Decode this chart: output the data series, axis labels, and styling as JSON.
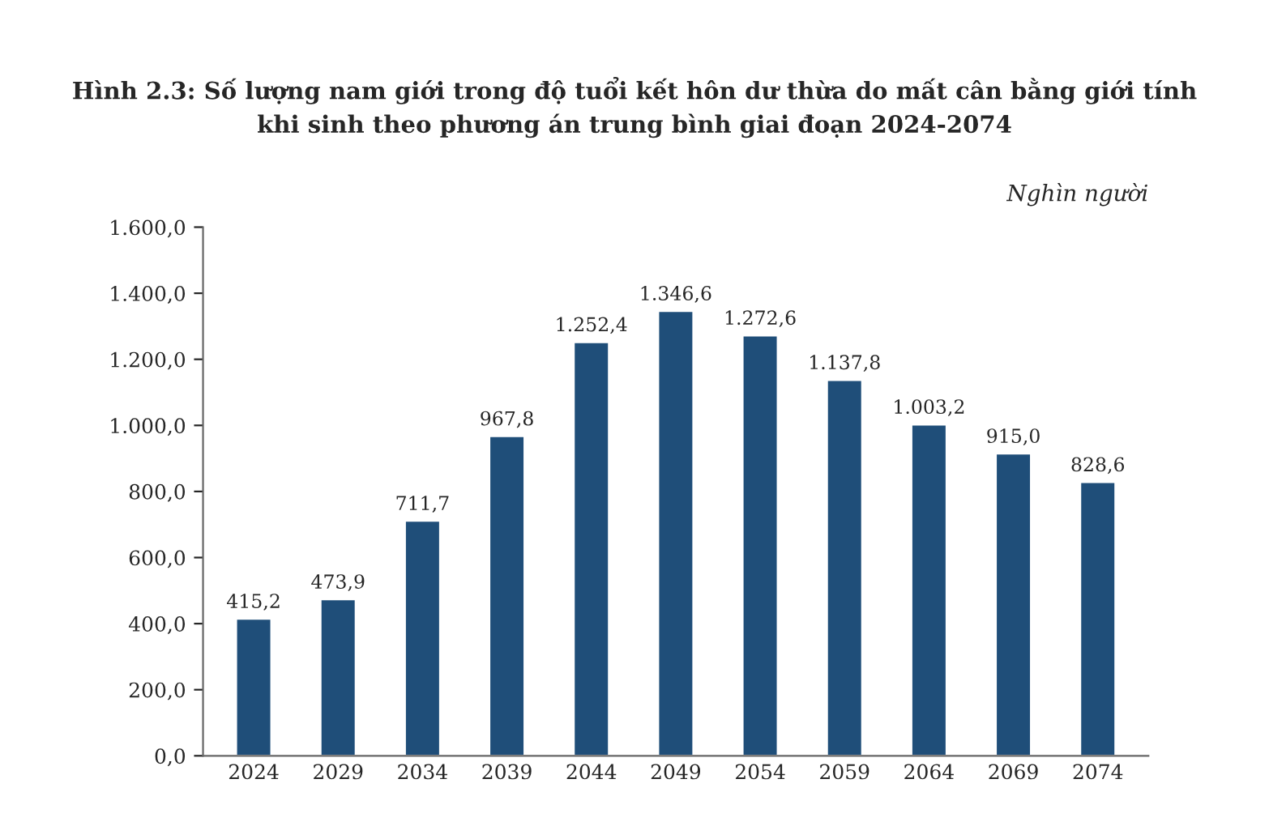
{
  "chart_data": {
    "type": "bar",
    "title": "Hình 2.3: Số lượng nam giới trong độ tuổi kết hôn dư thừa do mất cân bằng giới tính\nkhi sinh theo phương án trung bình giai đoạn 2024-2074",
    "ylabel": "Nghìn người",
    "categories": [
      "2024",
      "2029",
      "2034",
      "2039",
      "2044",
      "2049",
      "2054",
      "2059",
      "2064",
      "2069",
      "2074"
    ],
    "values": [
      415.2,
      473.9,
      711.7,
      967.8,
      1252.4,
      1346.6,
      1272.6,
      1137.8,
      1003.2,
      915.0,
      828.6
    ],
    "value_labels": [
      "415,2",
      "473,9",
      "711,7",
      "967,8",
      "1.252,4",
      "1.346,6",
      "1.272,6",
      "1.137,8",
      "1.003,2",
      "915,0",
      "828,6"
    ],
    "color": "#1f4e79",
    "ylim": [
      0,
      1600
    ],
    "yticks": [
      {
        "value": 0,
        "label": "0,0"
      },
      {
        "value": 200,
        "label": "200,0"
      },
      {
        "value": 400,
        "label": "400,0"
      },
      {
        "value": 600,
        "label": "600,0"
      },
      {
        "value": 800,
        "label": "800,0"
      },
      {
        "value": 1000,
        "label": "1.000,0"
      },
      {
        "value": 1200,
        "label": "1.200,0"
      },
      {
        "value": 1400,
        "label": "1.400,0"
      },
      {
        "value": 1600,
        "label": "1.600,0"
      }
    ],
    "grid": false,
    "legend": false
  }
}
